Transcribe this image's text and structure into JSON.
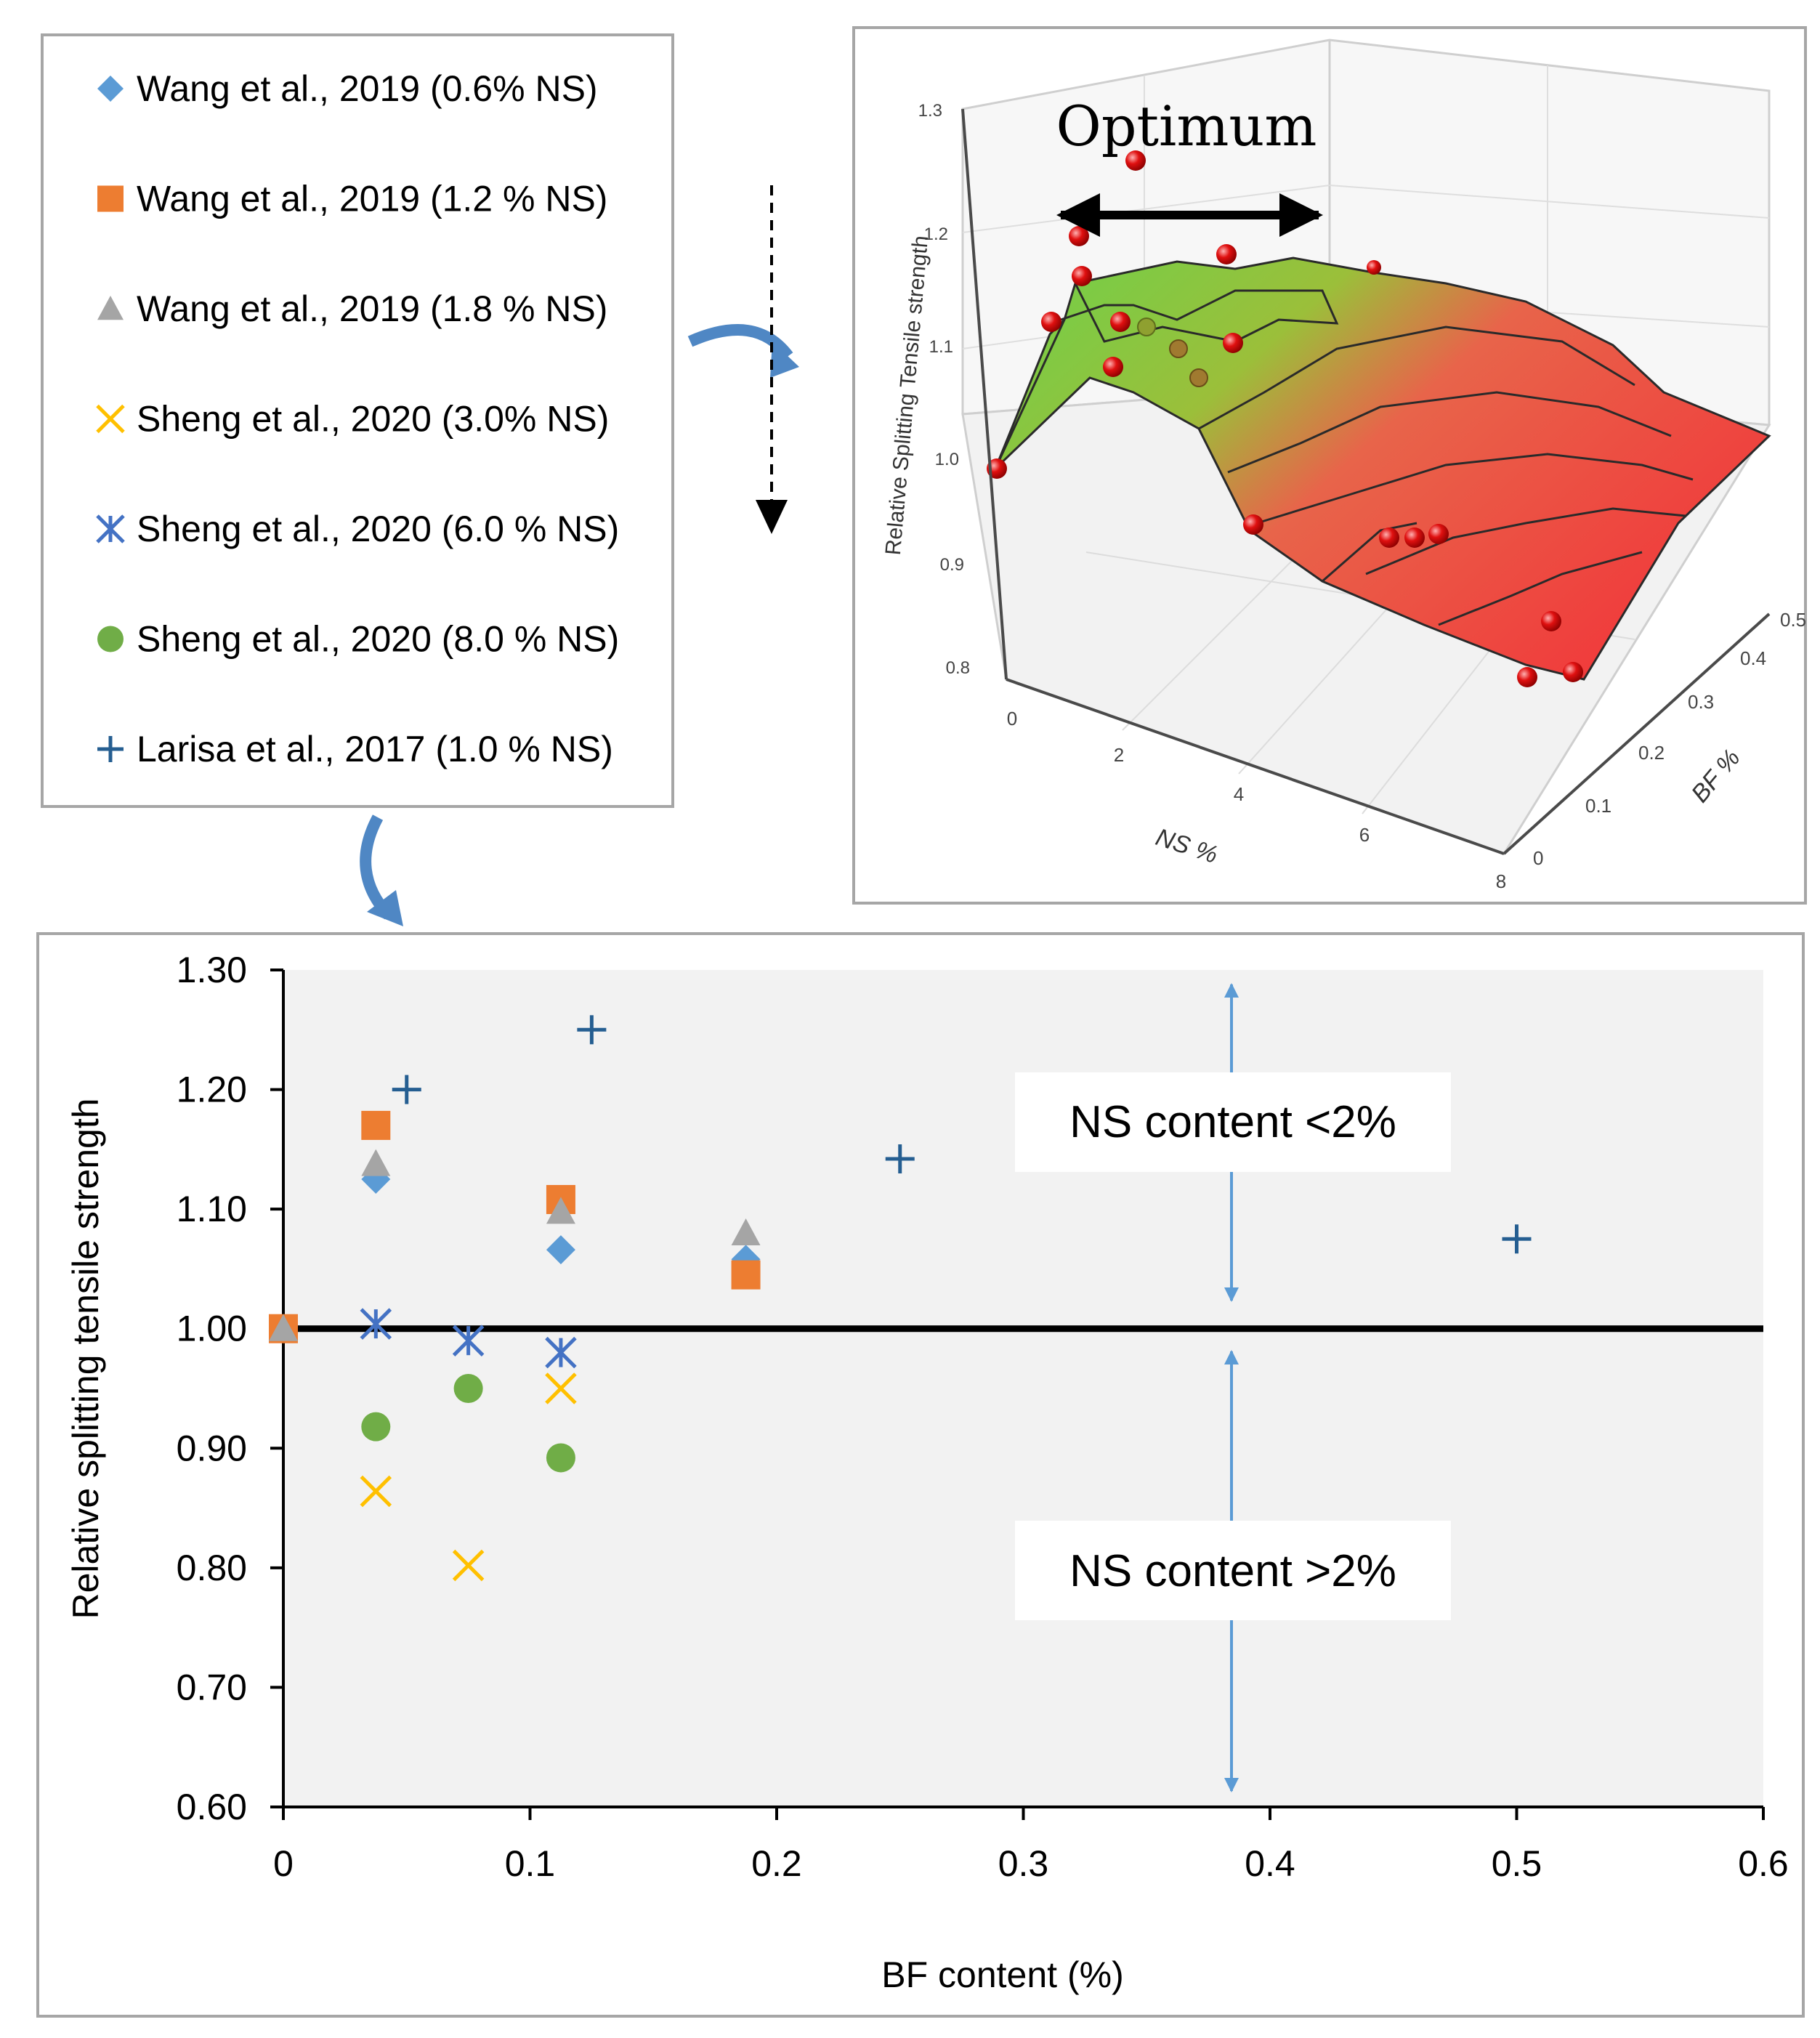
{
  "legend": {
    "entries": [
      {
        "label": "Wang et al., 2019 (0.6% NS)",
        "marker": "diamond",
        "color": "#5b9bd5"
      },
      {
        "label": "Wang et al., 2019 (1.2 % NS)",
        "marker": "square",
        "color": "#ed7d31"
      },
      {
        "label": "Wang et al., 2019 (1.8 % NS)",
        "marker": "triangle",
        "color": "#a5a5a5"
      },
      {
        "label": "Sheng et al., 2020 (3.0% NS)",
        "marker": "x",
        "color": "#ffc000"
      },
      {
        "label": "Sheng et al., 2020 (6.0 % NS)",
        "marker": "asterisk",
        "color": "#4472c4"
      },
      {
        "label": "Sheng et al., 2020 (8.0 % NS)",
        "marker": "circle",
        "color": "#70ad47"
      },
      {
        "label": "Larisa et al., 2017 (1.0 % NS)",
        "marker": "plus",
        "color": "#255e91"
      }
    ]
  },
  "surface": {
    "optimum_label": "Optimum",
    "zlabel": "Relative Splitting Tensile strength",
    "xlabel": "NS %",
    "ylabel": "BF %",
    "z_ticks": [
      "0.8",
      "0.9",
      "1.0",
      "1.1",
      "1.2",
      "1.3"
    ],
    "x_ticks": [
      "0",
      "2",
      "4",
      "6",
      "8"
    ],
    "y_ticks": [
      "0",
      "0.1",
      "0.2",
      "0.3",
      "0.4",
      "0.5"
    ]
  },
  "annotations": {
    "upper": "NS content  <2%",
    "lower": "NS content  >2%"
  },
  "chart_data": {
    "type": "scatter",
    "title": "",
    "xlabel": "BF content (%)",
    "ylabel": "Relative splitting tensile strength",
    "xlim": [
      0,
      0.6
    ],
    "ylim": [
      0.6,
      1.3
    ],
    "x_ticks": [
      "0",
      "0.1",
      "0.2",
      "0.3",
      "0.4",
      "0.5",
      "0.6"
    ],
    "y_ticks": [
      "0.60",
      "0.70",
      "0.80",
      "0.90",
      "1.00",
      "1.10",
      "1.20",
      "1.30"
    ],
    "reference_line": 1.0,
    "series": [
      {
        "name": "Wang et al., 2019 (0.6% NS)",
        "marker": "diamond",
        "color": "#5b9bd5",
        "points": [
          [
            0,
            1.0
          ],
          [
            0.0375,
            1.125
          ],
          [
            0.1125,
            1.066
          ],
          [
            0.1875,
            1.058
          ]
        ]
      },
      {
        "name": "Wang et al., 2019 (1.2 % NS)",
        "marker": "square",
        "color": "#ed7d31",
        "points": [
          [
            0,
            1.0
          ],
          [
            0.0375,
            1.17
          ],
          [
            0.1125,
            1.108
          ],
          [
            0.1875,
            1.045
          ]
        ]
      },
      {
        "name": "Wang et al., 2019 (1.8 % NS)",
        "marker": "triangle",
        "color": "#a5a5a5",
        "points": [
          [
            0,
            1.0
          ],
          [
            0.0375,
            1.138
          ],
          [
            0.1125,
            1.098
          ],
          [
            0.1875,
            1.08
          ]
        ]
      },
      {
        "name": "Sheng et al., 2020 (3.0% NS)",
        "marker": "x",
        "color": "#ffc000",
        "points": [
          [
            0.0375,
            0.864
          ],
          [
            0.075,
            0.802
          ],
          [
            0.1125,
            0.95
          ]
        ]
      },
      {
        "name": "Sheng et al., 2020 (6.0 % NS)",
        "marker": "asterisk",
        "color": "#4472c4",
        "points": [
          [
            0.0375,
            1.004
          ],
          [
            0.075,
            0.99
          ],
          [
            0.1125,
            0.98
          ]
        ]
      },
      {
        "name": "Sheng et al., 2020 (8.0 % NS)",
        "marker": "circle",
        "color": "#70ad47",
        "points": [
          [
            0.0375,
            0.918
          ],
          [
            0.075,
            0.95
          ],
          [
            0.1125,
            0.892
          ]
        ]
      },
      {
        "name": "Larisa et al., 2017 (1.0 % NS)",
        "marker": "plus",
        "color": "#255e91",
        "points": [
          [
            0.05,
            1.2
          ],
          [
            0.125,
            1.25
          ],
          [
            0.25,
            1.142
          ],
          [
            0.5,
            1.075
          ]
        ]
      }
    ]
  }
}
